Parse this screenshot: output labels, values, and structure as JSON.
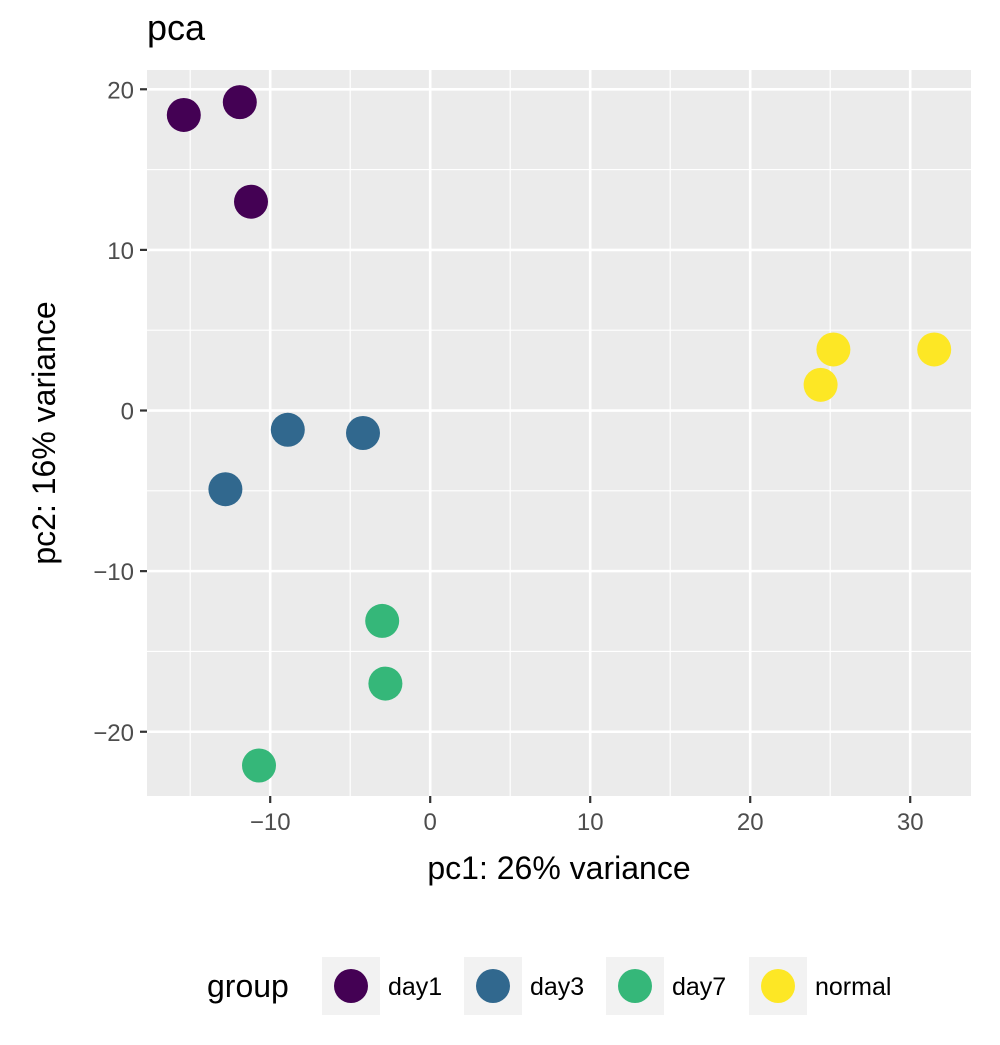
{
  "chart_data": {
    "type": "scatter",
    "title": "pca",
    "xlabel": "pc1: 26% variance",
    "ylabel": "pc2: 16% variance",
    "xlim": [
      -17.7,
      33.8
    ],
    "ylim": [
      -24.0,
      21.2
    ],
    "xticks": [
      -10,
      0,
      10,
      20,
      30
    ],
    "xtick_labels": [
      "−10",
      "0",
      "10",
      "20",
      "30"
    ],
    "yticks": [
      -20,
      -10,
      0,
      10,
      20
    ],
    "ytick_labels": [
      "−20",
      "−10",
      "0",
      "10",
      "20"
    ],
    "grid": true,
    "legend_title": "group",
    "legend_position": "bottom",
    "series": [
      {
        "name": "day1",
        "color": "#440154",
        "points": [
          [
            -15.4,
            18.4
          ],
          [
            -11.9,
            19.2
          ],
          [
            -11.2,
            13.0
          ]
        ]
      },
      {
        "name": "day3",
        "color": "#31688E",
        "points": [
          [
            -8.9,
            -1.2
          ],
          [
            -4.2,
            -1.4
          ],
          [
            -12.8,
            -4.9
          ]
        ]
      },
      {
        "name": "day7",
        "color": "#35B779",
        "points": [
          [
            -3.0,
            -13.1
          ],
          [
            -2.8,
            -17.0
          ],
          [
            -10.7,
            -22.1
          ]
        ]
      },
      {
        "name": "normal",
        "color": "#FDE725",
        "points": [
          [
            25.2,
            3.8
          ],
          [
            31.5,
            3.8
          ],
          [
            24.4,
            1.6
          ]
        ]
      }
    ]
  }
}
